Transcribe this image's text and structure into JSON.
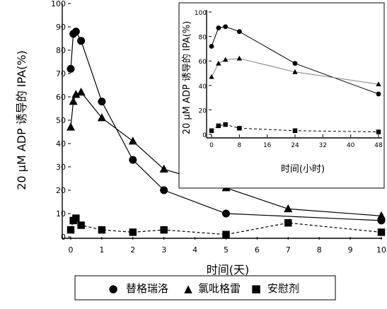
{
  "chart_data": [
    {
      "type": "line",
      "xlabel": "时间(天)",
      "ylabel": "20 μM ADP 诱导的 IPA(%)",
      "xlim": [
        0,
        10
      ],
      "ylim": [
        0,
        100
      ],
      "xticks": [
        0,
        1,
        2,
        3,
        4,
        5,
        6,
        7,
        8,
        9,
        10
      ],
      "yticks": [
        0,
        10,
        20,
        30,
        40,
        50,
        60,
        70,
        80,
        90,
        100
      ],
      "series": [
        {
          "name": "替格瑞洛",
          "marker": "circle",
          "line": "solid",
          "color": "#000000",
          "x": [
            0,
            0.083,
            0.167,
            0.333,
            1,
            2,
            3,
            5,
            10
          ],
          "y": [
            72,
            87,
            88,
            84,
            58,
            33,
            20,
            10,
            7
          ]
        },
        {
          "name": "氯吡格雷",
          "marker": "triangle",
          "line": "solid",
          "color": "#000000",
          "x": [
            0,
            0.083,
            0.167,
            0.333,
            1,
            2,
            3,
            5,
            7,
            10
          ],
          "y": [
            47,
            58,
            61,
            62,
            51,
            41,
            29,
            21,
            12,
            9
          ]
        },
        {
          "name": "安慰剂",
          "marker": "square",
          "line": "dashed",
          "color": "#000000",
          "x": [
            0,
            0.083,
            0.167,
            0.333,
            1,
            2,
            3,
            5,
            7,
            10
          ],
          "y": [
            3,
            7,
            8,
            5,
            3,
            2,
            3,
            1,
            6,
            2
          ]
        }
      ]
    },
    {
      "type": "line",
      "xlabel": "时间(小时)",
      "ylabel": "20 μM ADP 诱导的 IPA(%)",
      "xlim": [
        0,
        48
      ],
      "ylim": [
        0,
        100
      ],
      "xticks": [
        0,
        8,
        16,
        24,
        32,
        40,
        48
      ],
      "yticks": [
        0,
        20,
        40,
        60,
        80,
        100
      ],
      "series": [
        {
          "name": "替格瑞洛",
          "marker": "circle",
          "line": "solid",
          "color": "#000000",
          "x": [
            0,
            2,
            4,
            8,
            24,
            48
          ],
          "y": [
            72,
            87,
            88,
            84,
            58,
            33
          ]
        },
        {
          "name": "氯吡格雷",
          "marker": "triangle",
          "line": "solid",
          "color": "#808080",
          "x": [
            0,
            2,
            4,
            8,
            24,
            48
          ],
          "y": [
            47,
            58,
            61,
            62,
            51,
            41
          ]
        },
        {
          "name": "安慰剂",
          "marker": "square",
          "line": "dashed",
          "color": "#000000",
          "x": [
            0,
            2,
            4,
            8,
            24,
            48
          ],
          "y": [
            3,
            7,
            8,
            5,
            3,
            2
          ]
        }
      ]
    }
  ],
  "legend": {
    "items": [
      {
        "symbol": "●",
        "label": "替格瑞洛"
      },
      {
        "symbol": "▲",
        "label": "氯吡格雷"
      },
      {
        "symbol": "■",
        "label": "安慰剂"
      }
    ]
  }
}
